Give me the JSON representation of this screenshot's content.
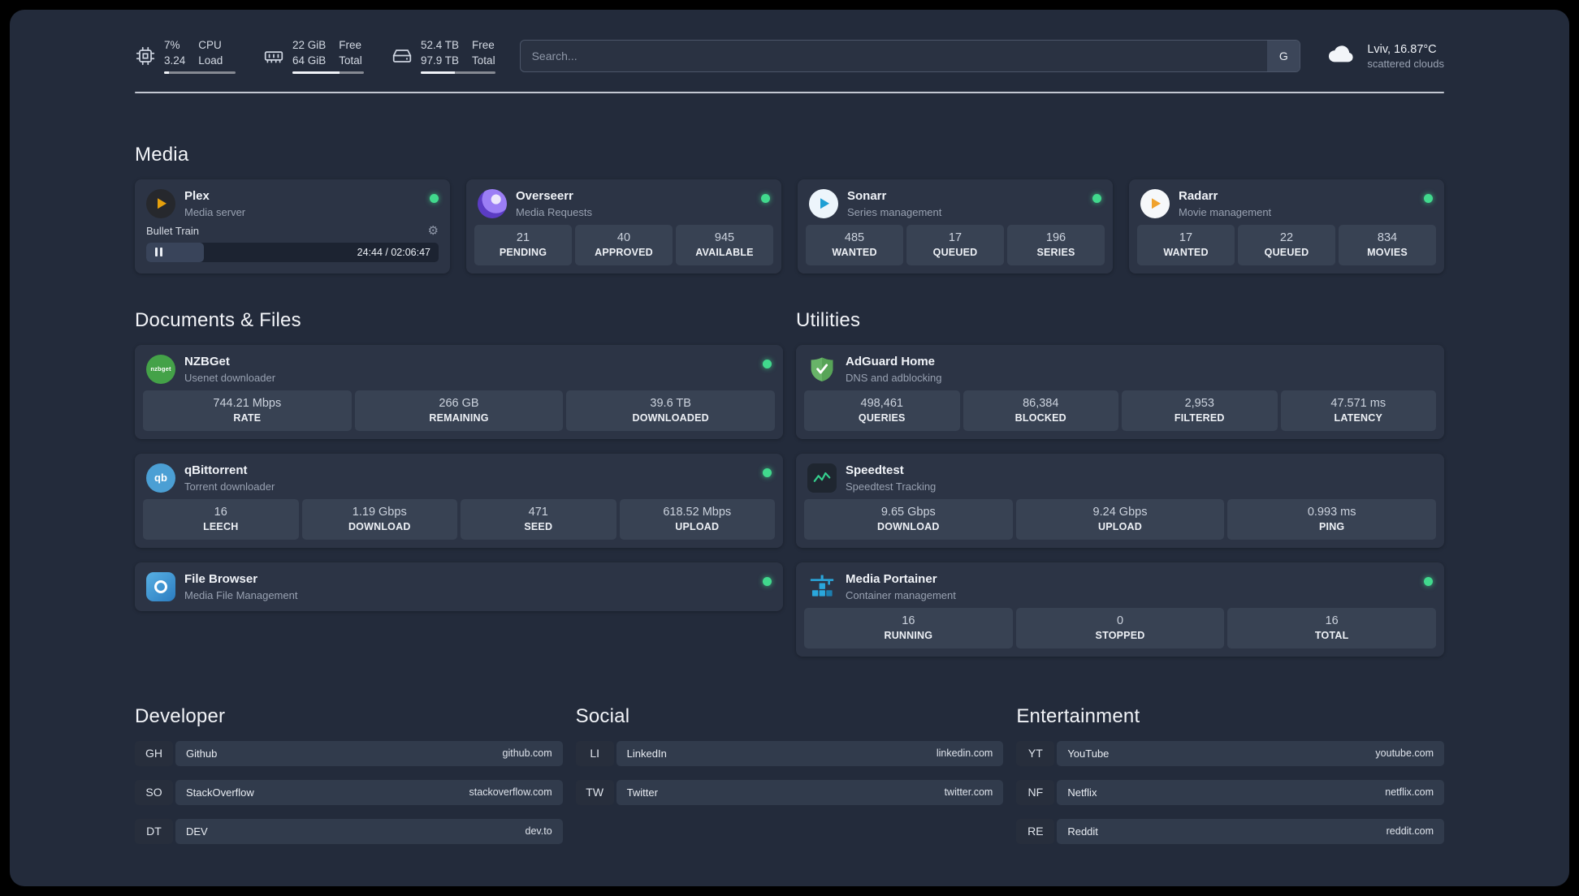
{
  "colors": {
    "background": "#232b3b",
    "card": "#2c3445",
    "stat_tile": "#384253",
    "status_online": "#41d98d",
    "plex_gold": "#e5a00d",
    "adguard_green": "#68b468",
    "speedtest_green": "#35d08e",
    "portainer_blue": "#2aa7dc"
  },
  "topbar": {
    "resources": [
      {
        "icon": "cpu-icon",
        "values": [
          "7%",
          "3.24"
        ],
        "labels": [
          "CPU",
          "Load"
        ],
        "bar_percent": 7
      },
      {
        "icon": "memory-icon",
        "values": [
          "22 GiB",
          "64 GiB"
        ],
        "labels": [
          "Free",
          "Total"
        ],
        "bar_percent": 66
      },
      {
        "icon": "disk-icon",
        "values": [
          "52.4 TB",
          "97.9 TB"
        ],
        "labels": [
          "Free",
          "Total"
        ],
        "bar_percent": 46
      }
    ],
    "search": {
      "placeholder": "Search...",
      "provider_button": "G"
    },
    "weather": {
      "icon": "cloud-icon",
      "location": "Lviv, 16.87°C",
      "condition": "scattered clouds"
    }
  },
  "sections": {
    "media": {
      "title": "Media",
      "cards": [
        {
          "name": "Plex",
          "desc": "Media server",
          "icon": "plex-icon",
          "status": "online",
          "player": {
            "title": "Bullet Train",
            "gear_glyph": "⚙",
            "time": "24:44 / 02:06:47",
            "progress_percent": 19.6
          }
        },
        {
          "name": "Overseerr",
          "desc": "Media Requests",
          "icon": "overseerr-icon",
          "status": "online",
          "stats": [
            {
              "value": "21",
              "label": "PENDING"
            },
            {
              "value": "40",
              "label": "APPROVED"
            },
            {
              "value": "945",
              "label": "AVAILABLE"
            }
          ]
        },
        {
          "name": "Sonarr",
          "desc": "Series management",
          "icon": "sonarr-icon",
          "status": "online",
          "stats": [
            {
              "value": "485",
              "label": "WANTED"
            },
            {
              "value": "17",
              "label": "QUEUED"
            },
            {
              "value": "196",
              "label": "SERIES"
            }
          ]
        },
        {
          "name": "Radarr",
          "desc": "Movie management",
          "icon": "radarr-icon",
          "status": "online",
          "stats": [
            {
              "value": "17",
              "label": "WANTED"
            },
            {
              "value": "22",
              "label": "QUEUED"
            },
            {
              "value": "834",
              "label": "MOVIES"
            }
          ]
        }
      ]
    },
    "documents": {
      "title": "Documents & Files",
      "cards": [
        {
          "name": "NZBGet",
          "desc": "Usenet downloader",
          "icon": "nzbget-icon",
          "icon_text": "nzbget",
          "status": "online",
          "stats": [
            {
              "value": "744.21 Mbps",
              "label": "RATE"
            },
            {
              "value": "266 GB",
              "label": "REMAINING"
            },
            {
              "value": "39.6 TB",
              "label": "DOWNLOADED"
            }
          ]
        },
        {
          "name": "qBittorrent",
          "desc": "Torrent downloader",
          "icon": "qbittorrent-icon",
          "icon_text": "qb",
          "status": "online",
          "stats": [
            {
              "value": "16",
              "label": "LEECH"
            },
            {
              "value": "1.19 Gbps",
              "label": "DOWNLOAD"
            },
            {
              "value": "471",
              "label": "SEED"
            },
            {
              "value": "618.52 Mbps",
              "label": "UPLOAD"
            }
          ]
        },
        {
          "name": "File Browser",
          "desc": "Media File Management",
          "icon": "filebrowser-icon",
          "status": "online"
        }
      ]
    },
    "utilities": {
      "title": "Utilities",
      "cards": [
        {
          "name": "AdGuard Home",
          "desc": "DNS and adblocking",
          "icon": "adguard-shield-icon",
          "stats": [
            {
              "value": "498,461",
              "label": "QUERIES"
            },
            {
              "value": "86,384",
              "label": "BLOCKED"
            },
            {
              "value": "2,953",
              "label": "FILTERED"
            },
            {
              "value": "47.571 ms",
              "label": "LATENCY"
            }
          ]
        },
        {
          "name": "Speedtest",
          "desc": "Speedtest Tracking",
          "icon": "speedtest-graph-icon",
          "stats": [
            {
              "value": "9.65 Gbps",
              "label": "DOWNLOAD"
            },
            {
              "value": "9.24 Gbps",
              "label": "UPLOAD"
            },
            {
              "value": "0.993 ms",
              "label": "PING"
            }
          ]
        },
        {
          "name": "Media Portainer",
          "desc": "Container management",
          "icon": "portainer-crane-icon",
          "status": "online",
          "stats": [
            {
              "value": "16",
              "label": "RUNNING"
            },
            {
              "value": "0",
              "label": "STOPPED"
            },
            {
              "value": "16",
              "label": "TOTAL"
            }
          ]
        }
      ]
    },
    "bookmarks": {
      "groups": [
        {
          "title": "Developer",
          "items": [
            {
              "abbr": "GH",
              "name": "Github",
              "domain": "github.com"
            },
            {
              "abbr": "SO",
              "name": "StackOverflow",
              "domain": "stackoverflow.com"
            },
            {
              "abbr": "DT",
              "name": "DEV",
              "domain": "dev.to"
            }
          ]
        },
        {
          "title": "Social",
          "items": [
            {
              "abbr": "LI",
              "name": "LinkedIn",
              "domain": "linkedin.com"
            },
            {
              "abbr": "TW",
              "name": "Twitter",
              "domain": "twitter.com"
            }
          ]
        },
        {
          "title": "Entertainment",
          "items": [
            {
              "abbr": "YT",
              "name": "YouTube",
              "domain": "youtube.com"
            },
            {
              "abbr": "NF",
              "name": "Netflix",
              "domain": "netflix.com"
            },
            {
              "abbr": "RE",
              "name": "Reddit",
              "domain": "reddit.com"
            }
          ]
        }
      ]
    }
  }
}
